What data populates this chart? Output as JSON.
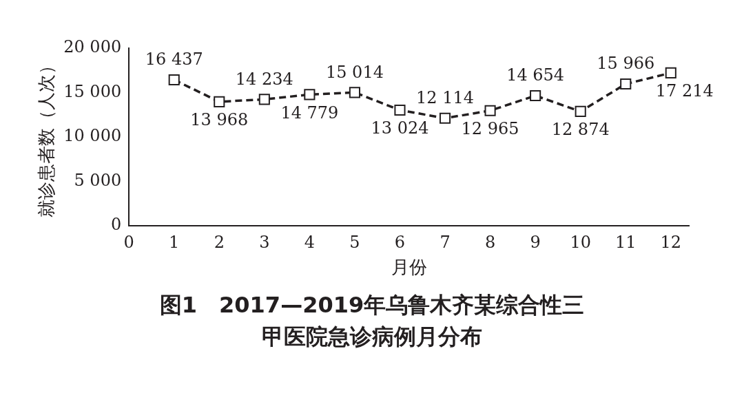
{
  "chart_data": {
    "type": "line",
    "title": "图1　2017—2019年乌鲁木齐某综合性三甲医院急诊病例月分布",
    "xlabel": "月份",
    "ylabel": "就诊患者数（人次）",
    "x": [
      1,
      2,
      3,
      4,
      5,
      6,
      7,
      8,
      9,
      10,
      11,
      12
    ],
    "series": [
      {
        "color": "#231f20",
        "values": [
          16437,
          13968,
          14234,
          14779,
          15014,
          13024,
          12114,
          12965,
          14654,
          12874,
          15966,
          17214
        ],
        "value_labels": [
          "16 437",
          "13 968",
          "14 234",
          "14 779",
          "15 014",
          "13 024",
          "12 114",
          "12 965",
          "14 654",
          "12 874",
          "15 966",
          "17 214"
        ]
      }
    ],
    "xlim": [
      0,
      12.4
    ],
    "xticks": [
      0,
      1,
      2,
      3,
      4,
      5,
      6,
      7,
      8,
      9,
      10,
      11,
      12
    ],
    "ylim": [
      0,
      20000
    ],
    "yticks": [
      {
        "value": 0,
        "label": "0"
      },
      {
        "value": 5000,
        "label": "5 000"
      },
      {
        "value": 10000,
        "label": "10 000"
      },
      {
        "value": 15000,
        "label": "15 000"
      },
      {
        "value": 20000,
        "label": "20 000"
      }
    ],
    "grid": false,
    "legend": false,
    "marker": "square",
    "line_style": "dashed"
  }
}
